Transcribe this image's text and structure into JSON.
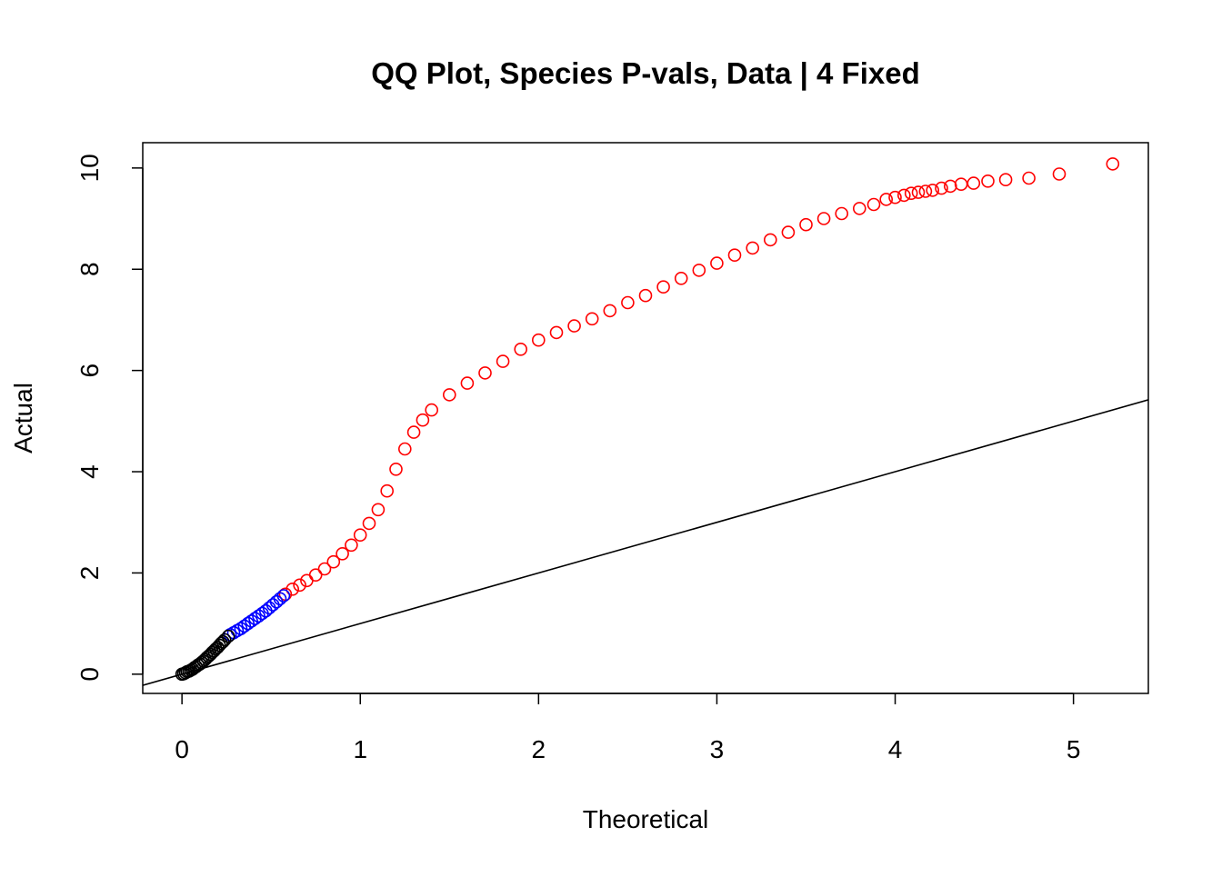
{
  "chart_data": {
    "type": "scatter",
    "title": "QQ Plot, Species P-vals, Data | 4 Fixed",
    "xlabel": "Theoretical",
    "ylabel": "Actual",
    "xlim": [
      -0.22,
      5.42
    ],
    "ylim": [
      -0.38,
      10.5
    ],
    "x_ticks": [
      0,
      1,
      2,
      3,
      4,
      5
    ],
    "y_ticks": [
      0,
      2,
      4,
      6,
      8,
      10
    ],
    "x_tick_labels": [
      "0",
      "1",
      "2",
      "3",
      "4",
      "5"
    ],
    "y_tick_labels": [
      "0",
      "2",
      "4",
      "6",
      "8",
      "10"
    ],
    "grid": false,
    "legend": "none",
    "reference_line": {
      "intercept": 0,
      "slope": 1,
      "color": "#000000"
    },
    "series": [
      {
        "color": "#000000",
        "points": [
          [
            0,
            0
          ],
          [
            0.01,
            0.01
          ],
          [
            0.02,
            0.03
          ],
          [
            0.03,
            0.05
          ],
          [
            0.04,
            0.06
          ],
          [
            0.05,
            0.08
          ],
          [
            0.06,
            0.1
          ],
          [
            0.07,
            0.13
          ],
          [
            0.08,
            0.15
          ],
          [
            0.09,
            0.18
          ],
          [
            0.1,
            0.2
          ],
          [
            0.11,
            0.23
          ],
          [
            0.12,
            0.26
          ],
          [
            0.13,
            0.29
          ],
          [
            0.14,
            0.33
          ],
          [
            0.15,
            0.36
          ],
          [
            0.16,
            0.39
          ],
          [
            0.17,
            0.43
          ],
          [
            0.18,
            0.46
          ],
          [
            0.19,
            0.5
          ],
          [
            0.2,
            0.53
          ],
          [
            0.21,
            0.57
          ],
          [
            0.22,
            0.61
          ],
          [
            0.23,
            0.64
          ],
          [
            0.24,
            0.68
          ],
          [
            0.26,
            0.75
          ]
        ]
      },
      {
        "color": "#0000ff",
        "points": [
          [
            0.27,
            0.78
          ],
          [
            0.29,
            0.82
          ],
          [
            0.31,
            0.86
          ],
          [
            0.33,
            0.9
          ],
          [
            0.35,
            0.95
          ],
          [
            0.37,
            1.0
          ],
          [
            0.39,
            1.05
          ],
          [
            0.41,
            1.1
          ],
          [
            0.43,
            1.15
          ],
          [
            0.45,
            1.2
          ],
          [
            0.47,
            1.25
          ],
          [
            0.49,
            1.31
          ],
          [
            0.51,
            1.37
          ],
          [
            0.53,
            1.43
          ],
          [
            0.55,
            1.49
          ],
          [
            0.57,
            1.55
          ]
        ]
      },
      {
        "color": "#ff0000",
        "points": [
          [
            0.58,
            1.58
          ],
          [
            0.62,
            1.68
          ],
          [
            0.66,
            1.76
          ],
          [
            0.7,
            1.85
          ],
          [
            0.75,
            1.96
          ],
          [
            0.8,
            2.08
          ],
          [
            0.85,
            2.22
          ],
          [
            0.9,
            2.38
          ],
          [
            0.95,
            2.55
          ],
          [
            1.0,
            2.75
          ],
          [
            1.05,
            2.98
          ],
          [
            1.1,
            3.25
          ],
          [
            1.15,
            3.62
          ],
          [
            1.2,
            4.05
          ],
          [
            1.25,
            4.45
          ],
          [
            1.3,
            4.78
          ],
          [
            1.35,
            5.02
          ],
          [
            1.4,
            5.22
          ],
          [
            1.5,
            5.52
          ],
          [
            1.6,
            5.75
          ],
          [
            1.7,
            5.95
          ],
          [
            1.8,
            6.18
          ],
          [
            1.9,
            6.42
          ],
          [
            2.0,
            6.6
          ],
          [
            2.1,
            6.75
          ],
          [
            2.2,
            6.88
          ],
          [
            2.3,
            7.02
          ],
          [
            2.4,
            7.18
          ],
          [
            2.5,
            7.34
          ],
          [
            2.6,
            7.48
          ],
          [
            2.7,
            7.65
          ],
          [
            2.8,
            7.82
          ],
          [
            2.9,
            7.98
          ],
          [
            3.0,
            8.12
          ],
          [
            3.1,
            8.28
          ],
          [
            3.2,
            8.42
          ],
          [
            3.3,
            8.58
          ],
          [
            3.4,
            8.73
          ],
          [
            3.5,
            8.88
          ],
          [
            3.6,
            9.0
          ],
          [
            3.7,
            9.1
          ],
          [
            3.8,
            9.2
          ],
          [
            3.88,
            9.28
          ],
          [
            3.95,
            9.38
          ],
          [
            4.0,
            9.42
          ],
          [
            4.05,
            9.46
          ],
          [
            4.09,
            9.5
          ],
          [
            4.13,
            9.52
          ],
          [
            4.17,
            9.54
          ],
          [
            4.21,
            9.56
          ],
          [
            4.26,
            9.6
          ],
          [
            4.31,
            9.64
          ],
          [
            4.37,
            9.68
          ],
          [
            4.44,
            9.7
          ],
          [
            4.52,
            9.74
          ],
          [
            4.62,
            9.77
          ],
          [
            4.75,
            9.8
          ],
          [
            4.92,
            9.88
          ],
          [
            5.22,
            10.08
          ]
        ]
      }
    ]
  }
}
